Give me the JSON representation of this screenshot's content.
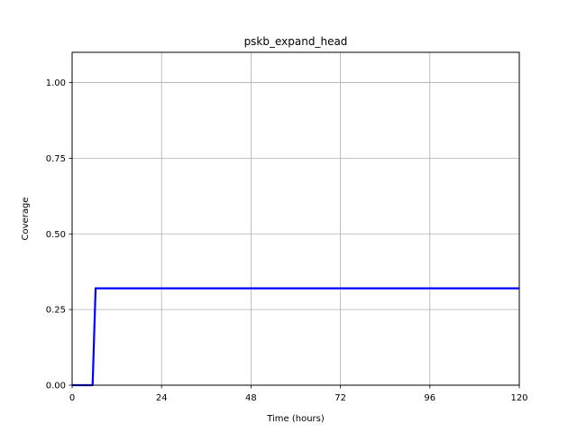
{
  "chart_data": {
    "type": "line",
    "title": "pskb_expand_head",
    "xlabel": "Time (hours)",
    "ylabel": "Coverage",
    "xlim": [
      0,
      120
    ],
    "ylim": [
      0,
      1.1
    ],
    "xticks": [
      0,
      24,
      48,
      72,
      96,
      120
    ],
    "xtick_labels": [
      "0",
      "24",
      "48",
      "72",
      "96",
      "120"
    ],
    "yticks": [
      0,
      0.25,
      0.5,
      0.75,
      1.0
    ],
    "ytick_labels": [
      "0.00",
      "0.25",
      "0.50",
      "0.75",
      "1.00"
    ],
    "grid": true,
    "series": [
      {
        "color": "#0000ff",
        "x": [
          0,
          5.5,
          6.3,
          120
        ],
        "y": [
          0,
          0,
          0.32,
          0.32
        ]
      }
    ]
  }
}
